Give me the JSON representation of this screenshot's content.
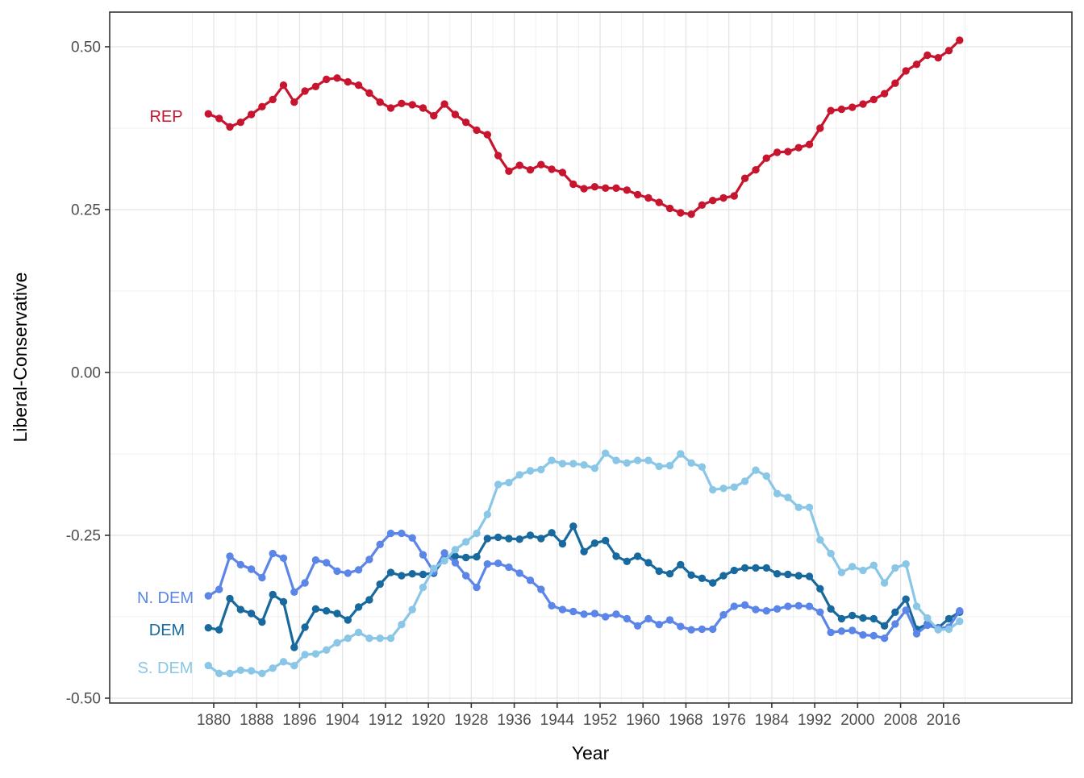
{
  "chart_data": {
    "type": "line",
    "title": "",
    "xlabel": "Year",
    "ylabel": "Liberal-Conservative",
    "legend": "direct-labels-left-of-lines",
    "grid": true,
    "xlim": [
      1858,
      2040
    ],
    "ylim": [
      -0.5,
      0.5
    ],
    "x_ticks": [
      1880,
      1888,
      1896,
      1904,
      1912,
      1920,
      1928,
      1936,
      1944,
      1952,
      1960,
      1968,
      1976,
      1984,
      1992,
      2000,
      2008,
      2016
    ],
    "y_ticks": [
      0.5,
      0.25,
      0.0,
      -0.25,
      -0.5
    ],
    "y_tick_labels": [
      "0.50",
      "0.25",
      "0.00",
      "-0.25",
      "-0.50"
    ],
    "y_minor_ticks": [
      0.375,
      0.125,
      -0.125,
      -0.375
    ],
    "x": [
      1879,
      1881,
      1883,
      1885,
      1887,
      1889,
      1891,
      1893,
      1895,
      1897,
      1899,
      1901,
      1903,
      1905,
      1907,
      1909,
      1911,
      1913,
      1915,
      1917,
      1919,
      1921,
      1923,
      1925,
      1927,
      1929,
      1931,
      1933,
      1935,
      1937,
      1939,
      1941,
      1943,
      1945,
      1947,
      1949,
      1951,
      1953,
      1955,
      1957,
      1959,
      1961,
      1963,
      1965,
      1967,
      1969,
      1971,
      1973,
      1975,
      1977,
      1979,
      1981,
      1983,
      1985,
      1987,
      1989,
      1991,
      1993,
      1995,
      1997,
      1999,
      2001,
      2003,
      2005,
      2007,
      2009,
      2011,
      2013,
      2015,
      2017,
      2019
    ],
    "series": [
      {
        "name": "DEM",
        "label": "DEM",
        "color": "#17699E",
        "label_pos": {
          "year": 1871.3,
          "value": -0.394
        },
        "values": [
          -0.392,
          -0.395,
          -0.347,
          -0.364,
          -0.37,
          -0.383,
          -0.341,
          -0.352,
          -0.422,
          -0.391,
          -0.363,
          -0.366,
          -0.37,
          -0.38,
          -0.36,
          -0.349,
          -0.325,
          -0.307,
          -0.312,
          -0.309,
          -0.31,
          -0.308,
          -0.285,
          -0.282,
          -0.284,
          -0.283,
          -0.255,
          -0.253,
          -0.255,
          -0.256,
          -0.25,
          -0.255,
          -0.246,
          -0.263,
          -0.236,
          -0.275,
          -0.262,
          -0.258,
          -0.282,
          -0.29,
          -0.282,
          -0.292,
          -0.305,
          -0.309,
          -0.295,
          -0.311,
          -0.316,
          -0.323,
          -0.312,
          -0.304,
          -0.3,
          -0.3,
          -0.3,
          -0.309,
          -0.31,
          -0.312,
          -0.313,
          -0.332,
          -0.363,
          -0.378,
          -0.373,
          -0.377,
          -0.378,
          -0.389,
          -0.368,
          -0.348,
          -0.394,
          -0.386,
          -0.392,
          -0.378,
          -0.368
        ]
      },
      {
        "name": "N. DEM",
        "label": "N. DEM",
        "color": "#5C85E8",
        "label_pos": {
          "year": 1871.0,
          "value": -0.344
        },
        "values": [
          -0.343,
          -0.333,
          -0.282,
          -0.295,
          -0.302,
          -0.315,
          -0.278,
          -0.285,
          -0.337,
          -0.323,
          -0.288,
          -0.292,
          -0.305,
          -0.308,
          -0.303,
          -0.287,
          -0.264,
          -0.247,
          -0.247,
          -0.254,
          -0.28,
          -0.306,
          -0.277,
          -0.292,
          -0.312,
          -0.33,
          -0.294,
          -0.293,
          -0.299,
          -0.308,
          -0.319,
          -0.333,
          -0.358,
          -0.364,
          -0.367,
          -0.371,
          -0.37,
          -0.375,
          -0.371,
          -0.378,
          -0.389,
          -0.378,
          -0.387,
          -0.38,
          -0.39,
          -0.395,
          -0.394,
          -0.394,
          -0.372,
          -0.359,
          -0.357,
          -0.364,
          -0.366,
          -0.363,
          -0.359,
          -0.358,
          -0.359,
          -0.368,
          -0.399,
          -0.397,
          -0.396,
          -0.403,
          -0.404,
          -0.408,
          -0.386,
          -0.365,
          -0.401,
          -0.388,
          -0.393,
          -0.391,
          -0.366
        ]
      },
      {
        "name": "S. DEM",
        "label": "S. DEM",
        "color": "#8AC6E6",
        "label_pos": {
          "year": 1871.0,
          "value": -0.452
        },
        "values": [
          -0.45,
          -0.462,
          -0.462,
          -0.457,
          -0.458,
          -0.462,
          -0.454,
          -0.444,
          -0.45,
          -0.433,
          -0.432,
          -0.426,
          -0.415,
          -0.408,
          -0.399,
          -0.408,
          -0.408,
          -0.408,
          -0.387,
          -0.364,
          -0.33,
          -0.301,
          -0.289,
          -0.272,
          -0.26,
          -0.247,
          -0.218,
          -0.172,
          -0.169,
          -0.157,
          -0.151,
          -0.149,
          -0.135,
          -0.14,
          -0.14,
          -0.142,
          -0.147,
          -0.124,
          -0.135,
          -0.139,
          -0.135,
          -0.135,
          -0.144,
          -0.143,
          -0.125,
          -0.139,
          -0.145,
          -0.18,
          -0.178,
          -0.176,
          -0.167,
          -0.15,
          -0.159,
          -0.186,
          -0.192,
          -0.207,
          -0.207,
          -0.257,
          -0.278,
          -0.307,
          -0.298,
          -0.304,
          -0.296,
          -0.323,
          -0.3,
          -0.294,
          -0.359,
          -0.377,
          -0.395,
          -0.394,
          -0.382
        ]
      },
      {
        "name": "REP",
        "label": "REP",
        "color": "#C8152F",
        "label_pos": {
          "year": 1871.2,
          "value": 0.394
        },
        "values": [
          0.397,
          0.39,
          0.377,
          0.384,
          0.396,
          0.408,
          0.419,
          0.441,
          0.415,
          0.432,
          0.439,
          0.45,
          0.452,
          0.446,
          0.441,
          0.429,
          0.415,
          0.406,
          0.413,
          0.411,
          0.406,
          0.394,
          0.412,
          0.396,
          0.384,
          0.372,
          0.365,
          0.333,
          0.309,
          0.318,
          0.311,
          0.319,
          0.312,
          0.307,
          0.289,
          0.282,
          0.285,
          0.283,
          0.283,
          0.28,
          0.273,
          0.268,
          0.261,
          0.252,
          0.245,
          0.243,
          0.257,
          0.264,
          0.268,
          0.271,
          0.298,
          0.311,
          0.329,
          0.338,
          0.339,
          0.345,
          0.35,
          0.375,
          0.402,
          0.404,
          0.407,
          0.412,
          0.419,
          0.428,
          0.444,
          0.463,
          0.473,
          0.487,
          0.483,
          0.494,
          0.51
        ]
      }
    ],
    "style": {
      "panel_border_color": "#333333",
      "major_grid_color": "#e4e4e4",
      "minor_grid_color": "#efefef",
      "tick_label_color": "#4d4d4d",
      "point_radius": 4.7,
      "line_width": 3.2
    }
  }
}
